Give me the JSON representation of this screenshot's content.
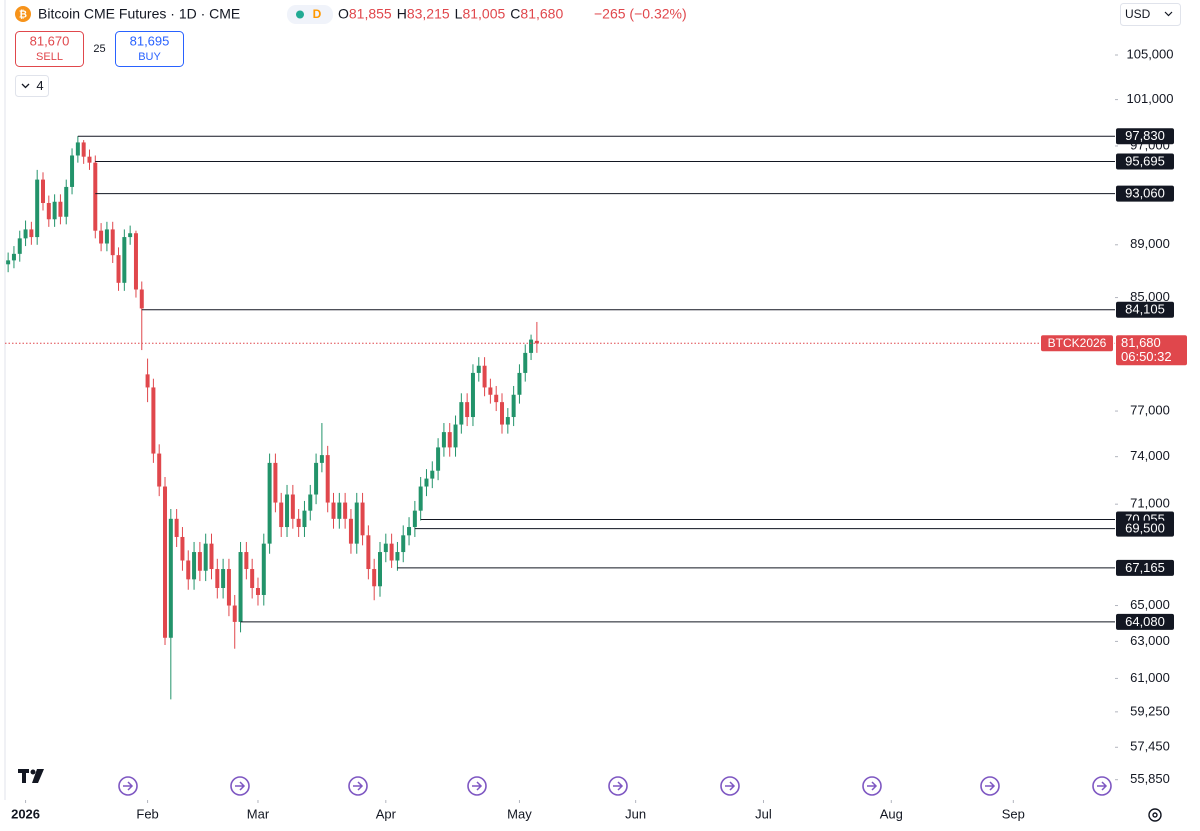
{
  "header": {
    "title": "Bitcoin CME Futures · 1D · CME",
    "badge": "D",
    "legend": [
      {
        "key": "O",
        "value": "81,855"
      },
      {
        "key": "H",
        "value": "83,215"
      },
      {
        "key": "L",
        "value": "81,005"
      },
      {
        "key": "C",
        "value": "81,680"
      }
    ],
    "change": "−265 (−0.32%)",
    "sell": {
      "price": "81,670",
      "label": "SELL"
    },
    "spread": "25",
    "buy": {
      "price": "81,695",
      "label": "BUY"
    },
    "indicators": "4",
    "currency": "USD"
  },
  "chart_data": {
    "type": "candlestick",
    "log_scale": true,
    "up_color": "#22936a",
    "down_color": "#e0474c",
    "ohlc": {
      "open": [
        87500,
        87800,
        88300,
        89500,
        90200,
        89600,
        94200,
        92300,
        91000,
        92400,
        91200,
        93600,
        96200,
        97300,
        96100,
        95600,
        90100,
        89100,
        90200,
        88200,
        86100,
        89600,
        89900,
        85600,
        79500,
        78600,
        74200,
        72100,
        63200,
        70100,
        69000,
        67600,
        66500,
        68100,
        67000,
        68600,
        67100,
        66000,
        67100,
        65000,
        64080,
        68100,
        67100,
        66000,
        65600,
        68600,
        73600,
        71100,
        69600,
        71600,
        70100,
        69600,
        70600,
        71600,
        73600,
        74100,
        71100,
        70100,
        71100,
        70100,
        68600,
        71100,
        69100,
        67100,
        66100,
        68100,
        68600,
        67600,
        68100,
        69100,
        69600,
        70600,
        72100,
        72600,
        73100,
        74600,
        75600,
        74600,
        76100,
        77600,
        76600,
        79600,
        80100,
        78600,
        78100,
        77600,
        76100,
        76600,
        78100,
        79600,
        81000,
        81855
      ],
      "high": [
        88400,
        88900,
        90100,
        90900,
        90800,
        95000,
        94800,
        92900,
        93000,
        93000,
        94200,
        96800,
        97830,
        97500,
        96700,
        96200,
        90700,
        90800,
        90800,
        88800,
        90200,
        90500,
        90100,
        86200,
        80600,
        79200,
        74800,
        72700,
        70700,
        70700,
        69600,
        68200,
        68700,
        68700,
        69200,
        69200,
        67700,
        67700,
        67700,
        65600,
        68700,
        68700,
        67700,
        66600,
        69200,
        74200,
        74200,
        71700,
        72200,
        72200,
        70700,
        71200,
        72200,
        74200,
        76200,
        74700,
        71700,
        71700,
        71700,
        70700,
        71700,
        71700,
        69700,
        67700,
        68700,
        69200,
        69200,
        68700,
        69700,
        70200,
        71200,
        72700,
        73200,
        73700,
        75200,
        76200,
        76200,
        76700,
        78200,
        78200,
        80200,
        80700,
        80700,
        79200,
        78700,
        78200,
        77200,
        78700,
        80200,
        81600,
        82300,
        83215
      ],
      "low": [
        86900,
        87200,
        87700,
        88900,
        89000,
        89000,
        91700,
        90400,
        90400,
        90600,
        90600,
        93000,
        95600,
        95500,
        95000,
        89500,
        88500,
        88500,
        87600,
        85500,
        85500,
        89000,
        85000,
        81200,
        77600,
        73600,
        71500,
        62800,
        59900,
        68400,
        67000,
        65900,
        65900,
        66400,
        66400,
        66500,
        65400,
        65400,
        64400,
        62600,
        63500,
        66500,
        65400,
        65000,
        65000,
        68000,
        70500,
        69000,
        69000,
        69500,
        69000,
        69000,
        70000,
        71000,
        73000,
        70500,
        69500,
        69500,
        69500,
        68000,
        68000,
        68500,
        66500,
        65300,
        65500,
        67500,
        67165,
        67000,
        67500,
        68500,
        69000,
        70000,
        71500,
        72000,
        72500,
        74000,
        74000,
        74000,
        75500,
        76000,
        76000,
        79000,
        78000,
        77500,
        77000,
        75500,
        75500,
        76000,
        77500,
        79000,
        80500,
        81005
      ],
      "close": [
        87800,
        88300,
        89500,
        90200,
        89600,
        94200,
        92300,
        91000,
        92400,
        91200,
        93600,
        96200,
        97300,
        96100,
        95600,
        90100,
        89100,
        90200,
        88200,
        86100,
        89600,
        89900,
        85600,
        84200,
        78600,
        74200,
        72100,
        63200,
        70100,
        69000,
        67600,
        66500,
        68100,
        67000,
        68600,
        67100,
        66000,
        67100,
        65000,
        64080,
        68100,
        67100,
        66000,
        65600,
        68600,
        73600,
        71100,
        69600,
        71600,
        70100,
        69600,
        70600,
        71600,
        73600,
        74100,
        71100,
        70100,
        71100,
        70100,
        68600,
        71100,
        69100,
        67100,
        66100,
        68100,
        68600,
        67600,
        68100,
        69100,
        69600,
        70600,
        72100,
        72600,
        73100,
        74600,
        75600,
        74600,
        76100,
        77600,
        76600,
        79600,
        80100,
        78600,
        78100,
        77600,
        76100,
        76600,
        78100,
        79600,
        81000,
        81945,
        81680
      ]
    },
    "xlim": [
      -1.4,
      190.5
    ],
    "xticks": [
      {
        "value": 3,
        "label": "2026"
      },
      {
        "value": 24,
        "label": "Feb"
      },
      {
        "value": 43,
        "label": "Mar"
      },
      {
        "value": 65,
        "label": "Apr"
      },
      {
        "value": 88,
        "label": "May"
      },
      {
        "value": 108,
        "label": "Jun"
      },
      {
        "value": 130,
        "label": "Jul"
      },
      {
        "value": 152,
        "label": "Aug"
      },
      {
        "value": 173,
        "label": "Sep"
      }
    ],
    "ylim": [
      55000,
      110000
    ],
    "yticks": [
      {
        "value": 105000,
        "label": "105,000"
      },
      {
        "value": 101000,
        "label": "101,000"
      },
      {
        "value": 97000,
        "label": "97,000"
      },
      {
        "value": 89000,
        "label": "89,000"
      },
      {
        "value": 85000,
        "label": "85,000"
      },
      {
        "value": 77000,
        "label": "77,000"
      },
      {
        "value": 74000,
        "label": "74,000"
      },
      {
        "value": 71000,
        "label": "71,000"
      },
      {
        "value": 65000,
        "label": "65,000"
      },
      {
        "value": 63000,
        "label": "63,000"
      },
      {
        "value": 61000,
        "label": "61,000"
      },
      {
        "value": 59250,
        "label": "59,250"
      },
      {
        "value": 57450,
        "label": "57,450"
      },
      {
        "value": 55850,
        "label": "55,850"
      }
    ],
    "levels": [
      {
        "value": 97830,
        "label": "97,830"
      },
      {
        "value": 95695,
        "label": "95,695"
      },
      {
        "value": 93060,
        "label": "93,060"
      },
      {
        "value": 84105,
        "label": "84,105"
      },
      {
        "value": 70055,
        "label": "70,055"
      },
      {
        "value": 69500,
        "label": "69,500"
      },
      {
        "value": 67165,
        "label": "67,165"
      },
      {
        "value": 64080,
        "label": "64,080"
      }
    ],
    "price_line": {
      "value": 81680,
      "label": "81,680",
      "symbol": "BTCK2026",
      "countdown": "06:50:32"
    }
  }
}
